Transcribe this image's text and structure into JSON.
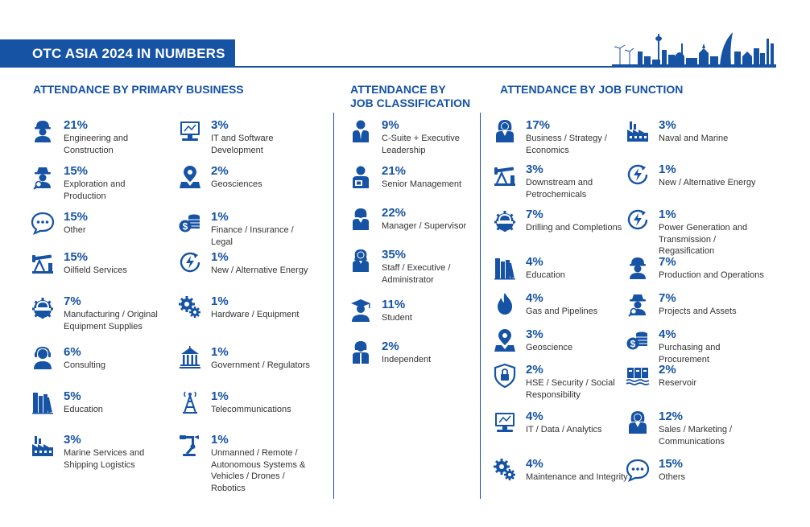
{
  "title": "OTC ASIA 2024 IN NUMBERS",
  "sections": {
    "primary_business": {
      "heading": "ATTENDANCE BY PRIMARY BUSINESS",
      "items": [
        {
          "icon": "engineer-icon",
          "pct": "21%",
          "label": "Engineering and Construction"
        },
        {
          "icon": "explorer-icon",
          "pct": "15%",
          "label": "Exploration and Production"
        },
        {
          "icon": "speech-bubble-icon",
          "pct": "15%",
          "label": "Other"
        },
        {
          "icon": "oil-pump-icon",
          "pct": "15%",
          "label": "Oilfield Services"
        },
        {
          "icon": "hardhat-gear-icon",
          "pct": "7%",
          "label": "Manufacturing / Original Equipment Supplies"
        },
        {
          "icon": "headset-person-icon",
          "pct": "6%",
          "label": "Consulting"
        },
        {
          "icon": "books-icon",
          "pct": "5%",
          "label": "Education"
        },
        {
          "icon": "factory-icon",
          "pct": "3%",
          "label": "Marine Services and Shipping Logistics"
        },
        {
          "icon": "computer-icon",
          "pct": "3%",
          "label": "IT and Software Development"
        },
        {
          "icon": "map-pin-icon",
          "pct": "2%",
          "label": "Geosciences"
        },
        {
          "icon": "coins-dollar-icon",
          "pct": "1%",
          "label": "Finance / Insurance / Legal"
        },
        {
          "icon": "renewable-energy-icon",
          "pct": "1%",
          "label": "New / Alternative Energy"
        },
        {
          "icon": "gears-icon",
          "pct": "1%",
          "label": "Hardware / Equipment"
        },
        {
          "icon": "government-building-icon",
          "pct": "1%",
          "label": "Government / Regulators"
        },
        {
          "icon": "telecom-tower-icon",
          "pct": "1%",
          "label": "Telecommunications"
        },
        {
          "icon": "robot-arm-icon",
          "pct": "1%",
          "label": "Unmanned / Remote / Autonomous Systems & Vehicles / Drones / Robotics"
        }
      ]
    },
    "job_classification": {
      "heading": "ATTENDANCE BY JOB CLASSIFICATION",
      "items": [
        {
          "icon": "executive-icon",
          "pct": "9%",
          "label": "C-Suite + Executive Leadership"
        },
        {
          "icon": "senior-manager-icon",
          "pct": "21%",
          "label": "Senior Management"
        },
        {
          "icon": "manager-icon",
          "pct": "22%",
          "label": "Manager / Supervisor"
        },
        {
          "icon": "staff-icon",
          "pct": "35%",
          "label": "Staff / Executive / Administrator"
        },
        {
          "icon": "graduate-icon",
          "pct": "11%",
          "label": "Student"
        },
        {
          "icon": "independent-icon",
          "pct": "2%",
          "label": "Independent"
        }
      ]
    },
    "job_function": {
      "heading": "ATTENDANCE BY JOB FUNCTION",
      "items": [
        {
          "icon": "business-woman-icon",
          "pct": "17%",
          "label": "Business / Strategy / Economics"
        },
        {
          "icon": "oil-pump-icon",
          "pct": "3%",
          "label": "Downstream and Petrochemicals"
        },
        {
          "icon": "hardhat-gear-icon",
          "pct": "7%",
          "label": "Drilling and Completions"
        },
        {
          "icon": "books-icon",
          "pct": "4%",
          "label": "Education"
        },
        {
          "icon": "flame-icon",
          "pct": "4%",
          "label": "Gas and Pipelines"
        },
        {
          "icon": "map-pin-icon",
          "pct": "3%",
          "label": "Geoscience"
        },
        {
          "icon": "shield-lock-icon",
          "pct": "2%",
          "label": "HSE / Security / Social Responsibility"
        },
        {
          "icon": "computer-icon",
          "pct": "4%",
          "label": "IT / Data / Analytics"
        },
        {
          "icon": "gears-icon",
          "pct": "4%",
          "label": "Maintenance and Integrity"
        },
        {
          "icon": "factory-icon",
          "pct": "3%",
          "label": "Naval and Marine"
        },
        {
          "icon": "renewable-energy-icon",
          "pct": "1%",
          "label": "New / Alternative Energy"
        },
        {
          "icon": "renewable-energy-icon",
          "pct": "1%",
          "label": "Power Generation and Transmission / Regasification"
        },
        {
          "icon": "engineer-icon",
          "pct": "7%",
          "label": "Production and Operations"
        },
        {
          "icon": "explorer-icon",
          "pct": "7%",
          "label": "Projects and Assets"
        },
        {
          "icon": "coins-dollar-icon",
          "pct": "4%",
          "label": "Purchasing and Procurement"
        },
        {
          "icon": "reservoir-tanks-icon",
          "pct": "2%",
          "label": "Reservoir"
        },
        {
          "icon": "business-woman-icon",
          "pct": "12%",
          "label": "Sales / Marketing / Communications"
        },
        {
          "icon": "speech-bubble-icon",
          "pct": "15%",
          "label": "Others"
        }
      ]
    }
  },
  "colors": {
    "primary": "#1653a4",
    "text": "#333333"
  }
}
